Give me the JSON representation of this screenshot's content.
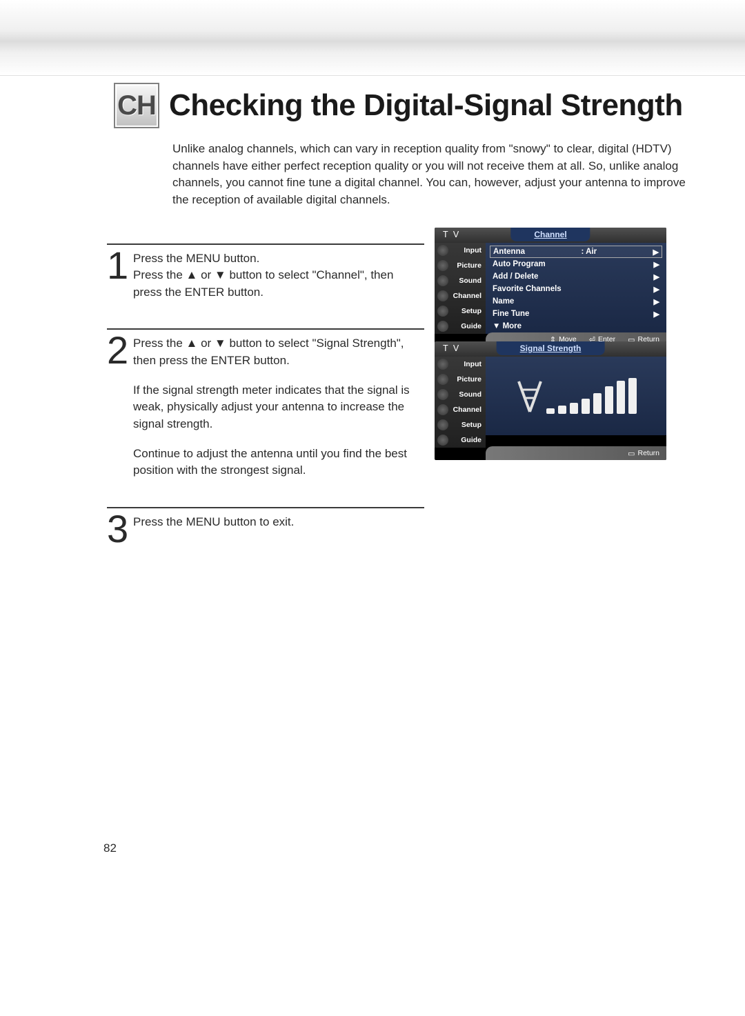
{
  "badge": "CH",
  "title": "Checking the Digital-Signal Strength",
  "intro": "Unlike analog channels, which can vary in reception quality from \"snowy\" to clear, digital (HDTV) channels have either perfect reception quality or you will not receive them at all. So, unlike analog channels, you cannot fine tune a digital channel. You can, however, adjust your antenna to improve the reception of available digital channels.",
  "steps": {
    "s1": {
      "num": "1",
      "p1": "Press the MENU button.",
      "p2": "Press the ▲ or ▼ button to select \"Channel\", then press the ENTER button."
    },
    "s2": {
      "num": "2",
      "p1": "Press the ▲ or ▼ button to select \"Signal Strength\", then press the ENTER button.",
      "p2": "If the signal strength meter indicates that the signal is weak, physically adjust your antenna to increase the signal strength.",
      "p3": "Continue to adjust the antenna until you find the best position with the strongest signal."
    },
    "s3": {
      "num": "3",
      "p1": "Press the MENU button to exit."
    }
  },
  "osd1": {
    "tv": "T V",
    "tab": "Channel",
    "sidebar": [
      "Input",
      "Picture",
      "Sound",
      "Channel",
      "Setup",
      "Guide"
    ],
    "menu": {
      "antenna_lbl": "Antenna",
      "antenna_val": ": Air",
      "auto_program": "Auto Program",
      "add_delete": "Add / Delete",
      "favorite": "Favorite Channels",
      "name": "Name",
      "fine_tune": "Fine Tune",
      "more": "▼ More"
    },
    "footer": {
      "move": "Move",
      "enter": "Enter",
      "return": "Return"
    }
  },
  "osd2": {
    "tv": "T V",
    "tab": "Signal Strength",
    "sidebar": [
      "Input",
      "Picture",
      "Sound",
      "Channel",
      "Setup",
      "Guide"
    ],
    "bars": [
      8,
      12,
      16,
      22,
      30,
      40,
      48,
      52
    ],
    "bar_color": "#f0f0f0",
    "footer": {
      "return": "Return"
    }
  },
  "page_number": "82"
}
